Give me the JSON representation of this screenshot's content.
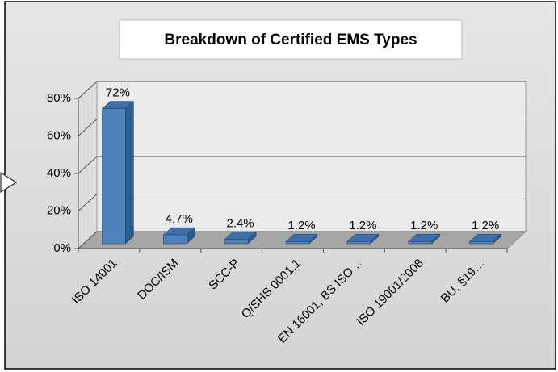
{
  "chart_data": {
    "type": "bar3d",
    "title": "Breakdown of Certified EMS Types",
    "categories": [
      "ISO 14001",
      "DOC/ISM",
      "SCC-P",
      "Q/SHS 0001.1",
      "EN 16001, BS ISO…",
      "ISO 19001/2008",
      "BU, §19…"
    ],
    "values": [
      72,
      4.7,
      2.4,
      1.2,
      1.2,
      1.2,
      1.2
    ],
    "value_labels": [
      "72%",
      "4.7%",
      "2.4%",
      "1.2%",
      "1.2%",
      "1.2%",
      "1.2%"
    ],
    "color": "#4f81bd",
    "ylim": [
      0,
      80
    ],
    "yticks": [
      {
        "value": 0,
        "label": "0%"
      },
      {
        "value": 20,
        "label": "20%"
      },
      {
        "value": 40,
        "label": "40%"
      },
      {
        "value": 60,
        "label": "60%"
      },
      {
        "value": 80,
        "label": "80%"
      }
    ],
    "grid": true
  }
}
